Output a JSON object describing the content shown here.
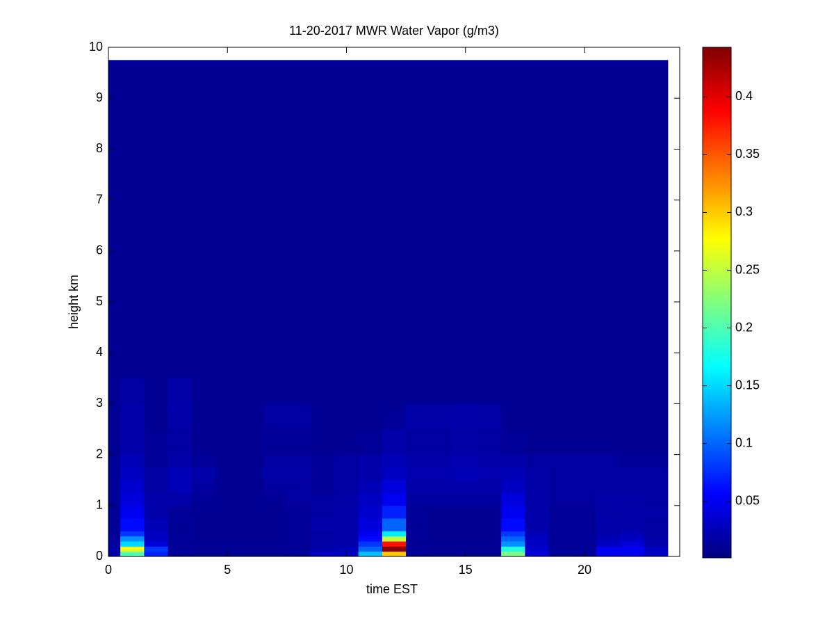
{
  "chart_data": {
    "type": "heatmap",
    "title": "11-20-2017 MWR Water Vapor (g/m3)",
    "x_label": "time EST",
    "y_label": "height km",
    "colormap": "jet",
    "x_edges": [
      0,
      0.5,
      1.5,
      2.5,
      3.5,
      4.5,
      5.5,
      6.5,
      7.5,
      8.5,
      9.5,
      10.5,
      11.5,
      12.5,
      13.5,
      14.5,
      15.5,
      16.5,
      17.5,
      18.5,
      19.5,
      20.5,
      21.5,
      22.5,
      23.5
    ],
    "y_edges": [
      0,
      0.1,
      0.2,
      0.3,
      0.4,
      0.5,
      0.75,
      1.0,
      1.25,
      1.5,
      1.75,
      2.0,
      2.5,
      3.0,
      3.5,
      9.75
    ],
    "values": [
      [
        0.02,
        0.2,
        0.07,
        0.012,
        0.01,
        0.01,
        0.01,
        0.01,
        0.012,
        0.03,
        0.03,
        0.14,
        0.3,
        0.012,
        0.01,
        0.01,
        0.01,
        0.22,
        0.04,
        0.012,
        0.012,
        0.05,
        0.05,
        0.03
      ],
      [
        0.02,
        0.27,
        0.08,
        0.012,
        0.01,
        0.01,
        0.01,
        0.01,
        0.012,
        0.02,
        0.025,
        0.1,
        0.44,
        0.012,
        0.01,
        0.01,
        0.01,
        0.18,
        0.035,
        0.012,
        0.012,
        0.05,
        0.05,
        0.03
      ],
      [
        0.015,
        0.15,
        0.04,
        0.012,
        0.01,
        0.01,
        0.01,
        0.01,
        0.012,
        0.018,
        0.02,
        0.08,
        0.38,
        0.012,
        0.01,
        0.01,
        0.01,
        0.12,
        0.03,
        0.012,
        0.012,
        0.03,
        0.04,
        0.02
      ],
      [
        0.015,
        0.12,
        0.03,
        0.012,
        0.01,
        0.01,
        0.01,
        0.01,
        0.012,
        0.018,
        0.02,
        0.06,
        0.25,
        0.012,
        0.01,
        0.01,
        0.01,
        0.1,
        0.03,
        0.012,
        0.012,
        0.025,
        0.03,
        0.02
      ],
      [
        0.012,
        0.08,
        0.03,
        0.012,
        0.01,
        0.01,
        0.01,
        0.01,
        0.012,
        0.015,
        0.018,
        0.05,
        0.16,
        0.012,
        0.01,
        0.01,
        0.01,
        0.08,
        0.025,
        0.012,
        0.012,
        0.02,
        0.025,
        0.015
      ],
      [
        0.012,
        0.06,
        0.025,
        0.012,
        0.01,
        0.01,
        0.01,
        0.01,
        0.012,
        0.02,
        0.02,
        0.04,
        0.1,
        0.012,
        0.01,
        0.01,
        0.01,
        0.06,
        0.02,
        0.012,
        0.012,
        0.02,
        0.02,
        0.015
      ],
      [
        0.012,
        0.05,
        0.02,
        0.012,
        0.01,
        0.01,
        0.01,
        0.01,
        0.012,
        0.015,
        0.02,
        0.035,
        0.07,
        0.012,
        0.01,
        0.01,
        0.01,
        0.05,
        0.02,
        0.012,
        0.012,
        0.018,
        0.02,
        0.018
      ],
      [
        0.012,
        0.04,
        0.02,
        0.02,
        0.012,
        0.01,
        0.01,
        0.012,
        0.015,
        0.015,
        0.018,
        0.03,
        0.05,
        0.015,
        0.015,
        0.015,
        0.015,
        0.04,
        0.02,
        0.015,
        0.015,
        0.018,
        0.018,
        0.015
      ],
      [
        0.012,
        0.035,
        0.015,
        0.025,
        0.015,
        0.01,
        0.01,
        0.015,
        0.015,
        0.012,
        0.015,
        0.025,
        0.04,
        0.02,
        0.02,
        0.02,
        0.02,
        0.03,
        0.018,
        0.015,
        0.015,
        0.015,
        0.015,
        0.015
      ],
      [
        0.012,
        0.03,
        0.015,
        0.025,
        0.02,
        0.01,
        0.01,
        0.018,
        0.018,
        0.012,
        0.015,
        0.02,
        0.03,
        0.022,
        0.022,
        0.025,
        0.022,
        0.025,
        0.018,
        0.015,
        0.015,
        0.015,
        0.015,
        0.015
      ],
      [
        0.012,
        0.025,
        0.012,
        0.02,
        0.012,
        0.01,
        0.01,
        0.015,
        0.015,
        0.012,
        0.015,
        0.02,
        0.025,
        0.02,
        0.02,
        0.022,
        0.02,
        0.02,
        0.015,
        0.015,
        0.015,
        0.015,
        0.012,
        0.012
      ],
      [
        0.01,
        0.02,
        0.012,
        0.015,
        0.01,
        0.01,
        0.01,
        0.012,
        0.012,
        0.01,
        0.01,
        0.012,
        0.02,
        0.015,
        0.015,
        0.018,
        0.015,
        0.012,
        0.01,
        0.01,
        0.01,
        0.01,
        0.01,
        0.01
      ],
      [
        0.01,
        0.02,
        0.01,
        0.02,
        0.01,
        0.01,
        0.01,
        0.015,
        0.015,
        0.01,
        0.01,
        0.01,
        0.012,
        0.018,
        0.018,
        0.02,
        0.018,
        0.01,
        0.01,
        0.01,
        0.01,
        0.01,
        0.01,
        0.01
      ],
      [
        0.01,
        0.015,
        0.01,
        0.018,
        0.01,
        0.01,
        0.01,
        0.01,
        0.01,
        0.01,
        0.01,
        0.01,
        0.01,
        0.01,
        0.01,
        0.01,
        0.01,
        0.01,
        0.01,
        0.01,
        0.01,
        0.01,
        0.01,
        0.01
      ],
      [
        0.01,
        0.01,
        0.01,
        0.01,
        0.01,
        0.01,
        0.01,
        0.01,
        0.01,
        0.01,
        0.01,
        0.01,
        0.01,
        0.01,
        0.01,
        0.01,
        0.01,
        0.01,
        0.01,
        0.01,
        0.01,
        0.01,
        0.01,
        0.01
      ]
    ],
    "xlim": [
      0,
      24
    ],
    "xticks": [
      0,
      5,
      10,
      15,
      20
    ],
    "ylim": [
      0,
      10
    ],
    "yticks": [
      0,
      1,
      2,
      3,
      4,
      5,
      6,
      7,
      8,
      9,
      10
    ],
    "clim": [
      0.001,
      0.443
    ],
    "cticks": [
      0.05,
      0.1,
      0.15,
      0.2,
      0.25,
      0.3,
      0.35,
      0.4
    ]
  }
}
